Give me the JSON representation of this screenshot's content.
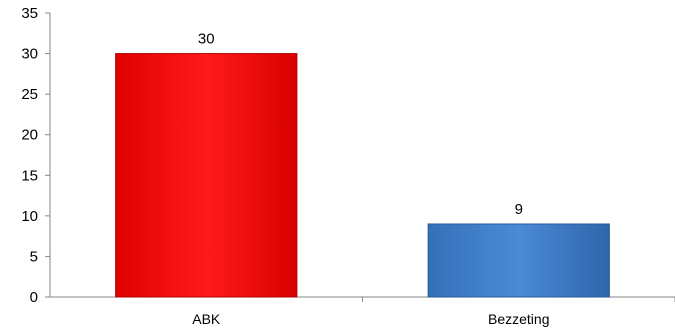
{
  "chart_data": {
    "type": "bar",
    "title": "",
    "xlabel": "",
    "ylabel": "",
    "categories": [
      "ABK",
      "Bezzeting"
    ],
    "values": [
      30,
      9
    ],
    "data_labels": [
      "30",
      "9"
    ],
    "ylim": [
      0,
      35
    ],
    "yticks": [
      0,
      5,
      10,
      15,
      20,
      25,
      30,
      35
    ],
    "ytick_labels": [
      "0",
      "5",
      "10",
      "15",
      "20",
      "25",
      "30",
      "35"
    ],
    "grid": false,
    "legend": "none",
    "colors": [
      "#ff0000",
      "#3d7cc9"
    ],
    "border_colors": [
      "#b30000",
      "#2a5a96"
    ]
  }
}
